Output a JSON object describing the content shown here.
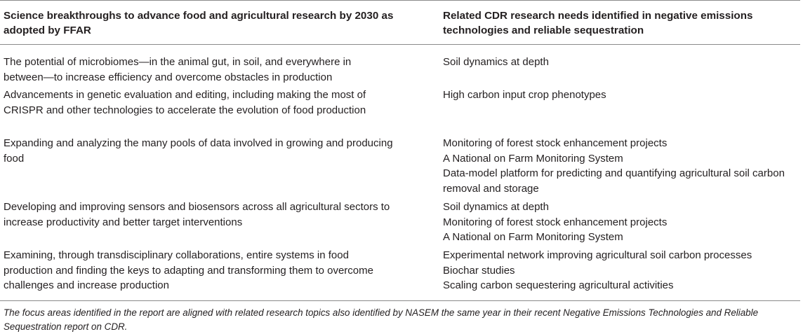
{
  "table": {
    "headers": {
      "left": "Science breakthroughs to advance food and agricultural research by 2030 as adopted by FFAR",
      "right": "Related CDR research needs identified in negative emissions technologies and reliable sequestration"
    },
    "rows": [
      {
        "breakthrough": "The potential of microbiomes—in the animal gut, in soil, and everywhere in between—to increase efficiency and overcome obstacles in production",
        "needs": [
          "Soil dynamics at depth"
        ]
      },
      {
        "breakthrough": "Advancements in genetic evaluation and editing, including making the most of CRISPR and other technologies to accelerate the evolution of food production",
        "needs": [
          "High carbon input crop phenotypes"
        ]
      },
      {
        "breakthrough": "Expanding and analyzing the many pools of data involved in growing and producing food",
        "needs": [
          "Monitoring of forest stock enhancement projects",
          "A National on Farm Monitoring System",
          "Data-model platform for predicting and quantifying agricultural soil carbon",
          "removal and storage"
        ]
      },
      {
        "breakthrough": "Developing and improving sensors and biosensors across all agricultural sectors to increase productivity and better target interventions",
        "needs": [
          "Soil dynamics at depth",
          "Monitoring of forest stock enhancement projects",
          "A National on Farm Monitoring System"
        ]
      },
      {
        "breakthrough": "Examining, through transdisciplinary collaborations, entire systems in food production and finding the keys to adapting and transforming them to overcome challenges and increase production",
        "needs": [
          "Experimental network improving agricultural soil carbon processes",
          "Biochar studies",
          "Scaling carbon sequestering agricultural activities"
        ]
      }
    ],
    "footnote": "The focus areas identified in the report are aligned with related research topics also identified by NASEM the same year in their recent Negative Emissions Technologies and Reliable Sequestration report on CDR."
  }
}
